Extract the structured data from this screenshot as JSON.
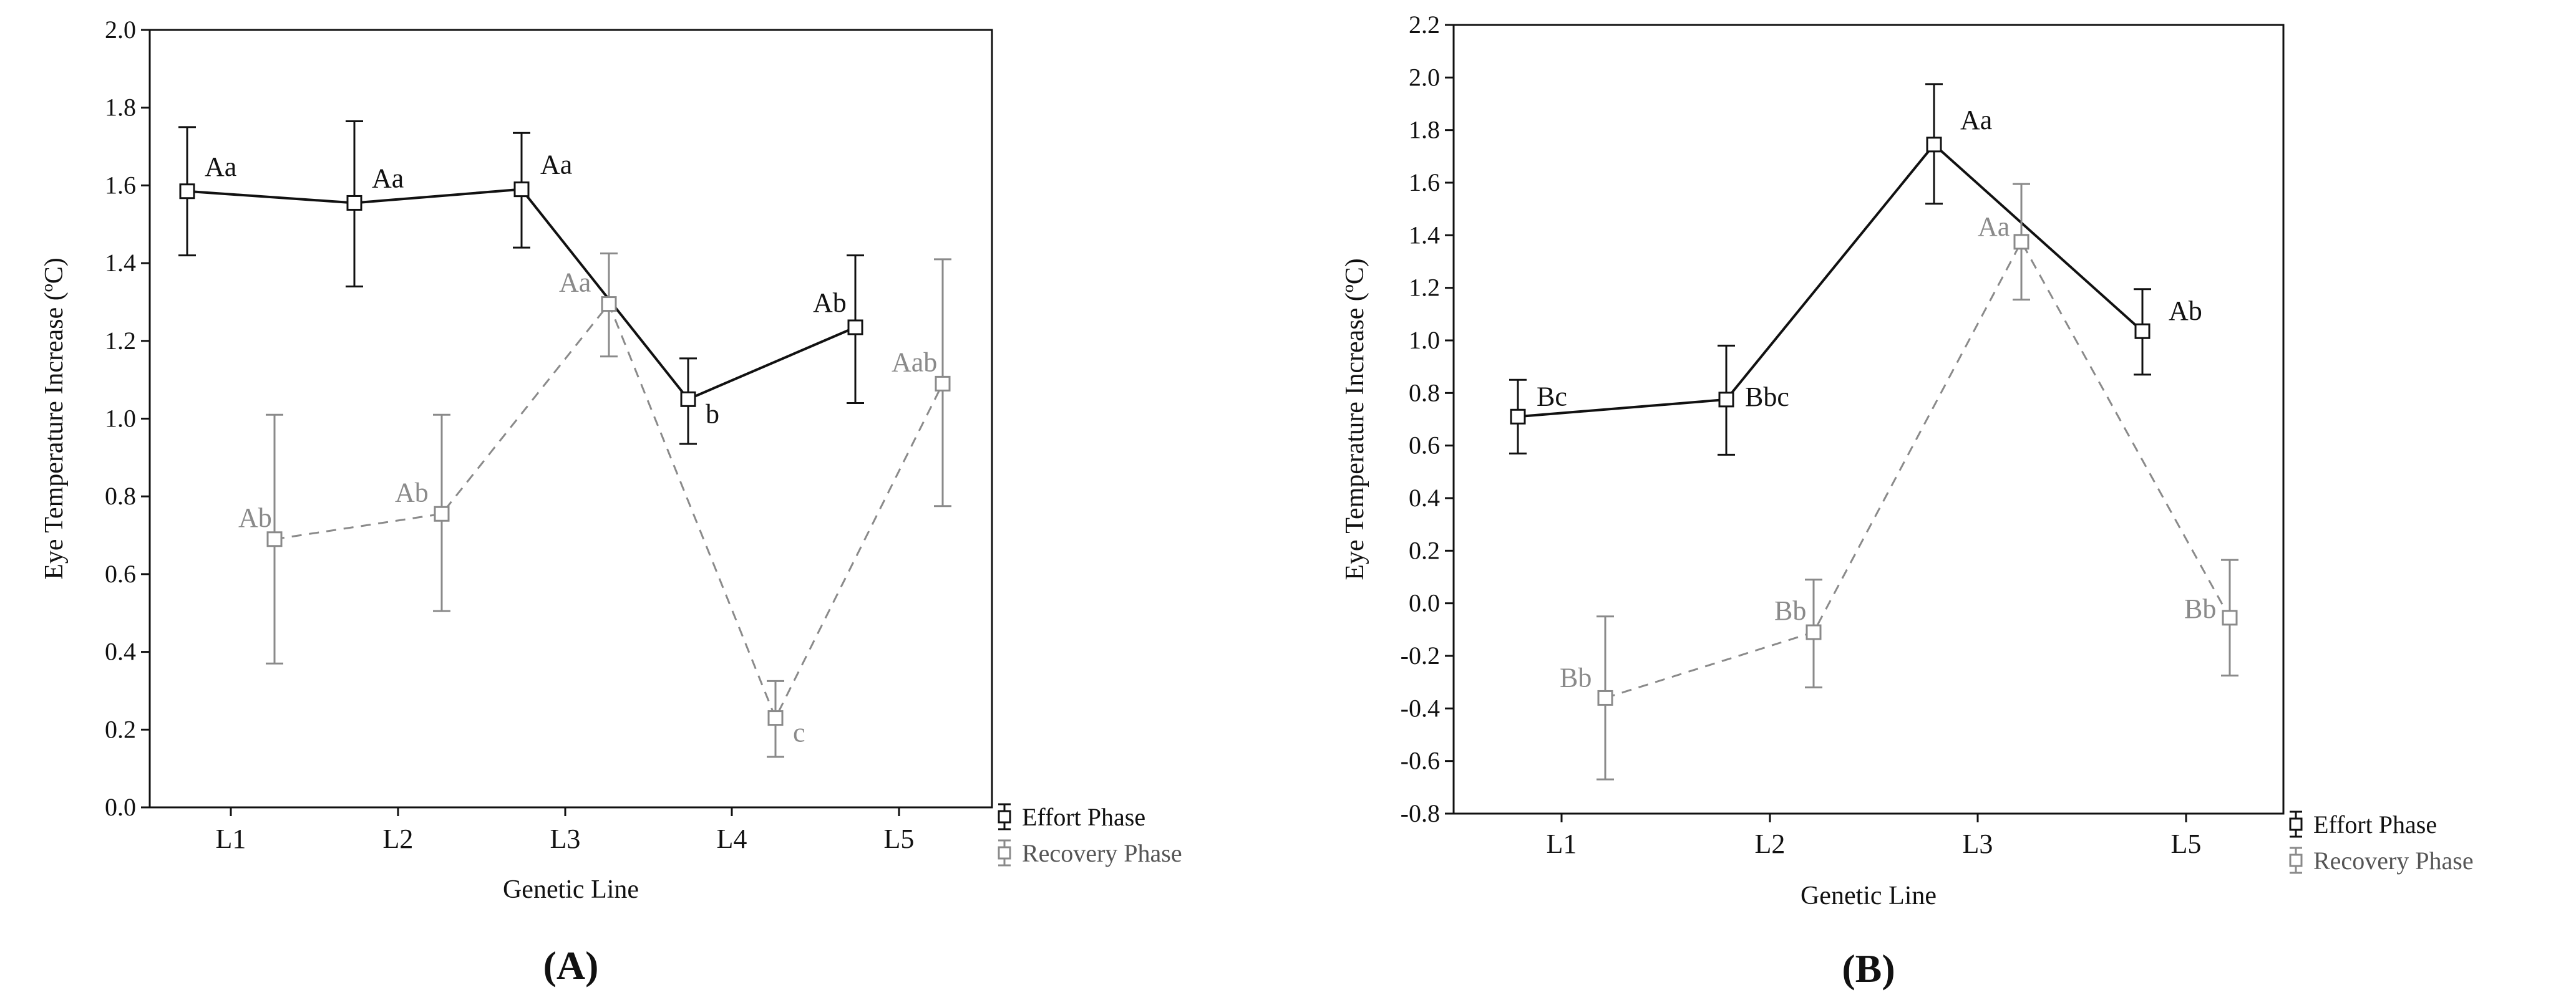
{
  "chart_data": [
    {
      "type": "line",
      "panel_label": "(A)",
      "xlabel": "Genetic Line",
      "ylabel": "Eye Temperature Increase (ºC)",
      "categories": [
        "L1",
        "L2",
        "L3",
        "L4",
        "L5"
      ],
      "ylim": [
        0,
        2.0
      ],
      "yticks": [
        "0.0",
        "0.2",
        "0.4",
        "0.6",
        "0.8",
        "1.0",
        "1.2",
        "1.4",
        "1.6",
        "1.8",
        "2.0"
      ],
      "grid": false,
      "legend_position": "bottom-right outside",
      "series": [
        {
          "name": "Effort Phase",
          "color": "#111111",
          "dash": false,
          "points": [
            {
              "x": "L1",
              "y": 1.585,
              "low": 1.42,
              "high": 1.75,
              "label": "Aa"
            },
            {
              "x": "L2",
              "y": 1.555,
              "low": 1.34,
              "high": 1.765,
              "label": "Aa"
            },
            {
              "x": "L3",
              "y": 1.59,
              "low": 1.44,
              "high": 1.735,
              "label": "Aa"
            },
            {
              "x": "L4",
              "y": 1.05,
              "low": 0.935,
              "high": 1.155,
              "label": "b"
            },
            {
              "x": "L5",
              "y": 1.235,
              "low": 1.04,
              "high": 1.42,
              "label": "Ab"
            }
          ]
        },
        {
          "name": "Recovery Phase",
          "color": "#888888",
          "dash": true,
          "points": [
            {
              "x": "L1",
              "y": 0.69,
              "low": 0.37,
              "high": 1.01,
              "label": "Ab"
            },
            {
              "x": "L2",
              "y": 0.755,
              "low": 0.505,
              "high": 1.01,
              "label": "Ab"
            },
            {
              "x": "L3",
              "y": 1.295,
              "low": 1.16,
              "high": 1.425,
              "label": "Aa"
            },
            {
              "x": "L4",
              "y": 0.23,
              "low": 0.13,
              "high": 0.325,
              "label": "c"
            },
            {
              "x": "L5",
              "y": 1.09,
              "low": 0.775,
              "high": 1.41,
              "label": "Aab"
            }
          ]
        }
      ]
    },
    {
      "type": "line",
      "panel_label": "(B)",
      "xlabel": "Genetic Line",
      "ylabel": "Eye Temperature Increase (ºC)",
      "categories": [
        "L1",
        "L2",
        "L3",
        "L5"
      ],
      "ylim": [
        -0.8,
        2.2
      ],
      "yticks": [
        "-0.8",
        "-0.6",
        "-0.4",
        "-0.2",
        "0.0",
        "0.2",
        "0.4",
        "0.6",
        "0.8",
        "1.0",
        "1.2",
        "1.4",
        "1.6",
        "1.8",
        "2.0",
        "2.2"
      ],
      "grid": false,
      "legend_position": "bottom-right outside",
      "series": [
        {
          "name": "Effort Phase",
          "color": "#111111",
          "dash": false,
          "points": [
            {
              "x": "L1",
              "y": 0.71,
              "low": 0.57,
              "high": 0.85,
              "label": "Bc"
            },
            {
              "x": "L2",
              "y": 0.775,
              "low": 0.565,
              "high": 0.98,
              "label": "Bbc"
            },
            {
              "x": "L3",
              "y": 1.745,
              "low": 1.52,
              "high": 1.975,
              "label": "Aa"
            },
            {
              "x": "L5",
              "y": 1.035,
              "low": 0.87,
              "high": 1.195,
              "label": "Ab"
            }
          ]
        },
        {
          "name": "Recovery Phase",
          "color": "#888888",
          "dash": true,
          "points": [
            {
              "x": "L1",
              "y": -0.36,
              "low": -0.67,
              "high": -0.05,
              "label": "Bb"
            },
            {
              "x": "L2",
              "y": -0.11,
              "low": -0.32,
              "high": 0.09,
              "label": "Bb"
            },
            {
              "x": "L3",
              "y": 1.375,
              "low": 1.155,
              "high": 1.595,
              "label": "Aa"
            },
            {
              "x": "L5",
              "y": -0.055,
              "low": -0.275,
              "high": 0.165,
              "label": "Bb"
            }
          ]
        }
      ]
    }
  ]
}
